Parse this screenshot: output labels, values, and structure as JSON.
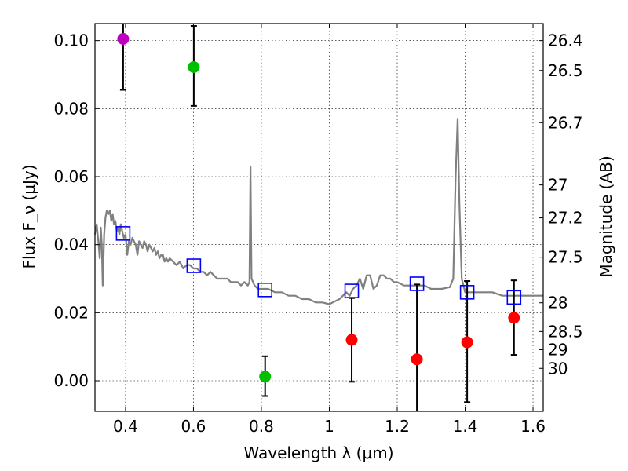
{
  "chart_data": {
    "type": "scatter",
    "xlabel": "Wavelength λ (μm)",
    "ylabel": "Flux F_ν (μJy)",
    "y2label": "Magnitude (AB)",
    "xlim": [
      0.31,
      1.63
    ],
    "ylim": [
      -0.009,
      0.105
    ],
    "x_ticks": [
      0.4,
      0.6,
      0.8,
      1.0,
      1.2,
      1.4,
      1.6
    ],
    "x_tick_labels": [
      "0.4",
      "0.6",
      "0.8",
      "1",
      "1.2",
      "1.4",
      "1.6"
    ],
    "y_ticks": [
      0.0,
      0.02,
      0.04,
      0.06,
      0.08,
      0.1
    ],
    "y_tick_labels": [
      "0.00",
      "0.02",
      "0.04",
      "0.06",
      "0.08",
      "0.10"
    ],
    "y2_ticks": [
      26.4,
      26.5,
      26.7,
      27,
      27.2,
      27.5,
      28,
      28.5,
      29,
      30
    ],
    "y2_tick_labels": [
      "26.4",
      "26.5",
      "26.7",
      "27",
      "27.2",
      "27.5",
      "28",
      "28.5",
      "29",
      "30"
    ],
    "grid": true,
    "colors": {
      "magenta": "#bf00bf",
      "green": "#00bf00",
      "red": "#ff0000",
      "model": "#808080",
      "box": "#0000ff"
    },
    "series": [
      {
        "name": "detection-magenta",
        "kind": "points-with-errors",
        "color": "magenta",
        "points": [
          {
            "x": 0.393,
            "y": 0.1005,
            "err_lo": 0.0855,
            "err_hi": 0.1055
          }
        ]
      },
      {
        "name": "detections-green",
        "kind": "points-with-errors",
        "color": "green",
        "points": [
          {
            "x": 0.601,
            "y": 0.0922,
            "err_lo": 0.0808,
            "err_hi": 0.1043
          },
          {
            "x": 0.811,
            "y": 0.0012,
            "err_lo": -0.0045,
            "err_hi": 0.0072
          }
        ]
      },
      {
        "name": "detections-red",
        "kind": "points-with-errors",
        "color": "red",
        "points": [
          {
            "x": 1.066,
            "y": 0.012,
            "err_lo": -0.0003,
            "err_hi": 0.0243
          },
          {
            "x": 1.258,
            "y": 0.0063,
            "err_lo": -0.009,
            "err_hi": 0.0283
          },
          {
            "x": 1.406,
            "y": 0.0113,
            "err_lo": -0.0063,
            "err_hi": 0.0293
          },
          {
            "x": 1.544,
            "y": 0.0185,
            "err_lo": 0.0076,
            "err_hi": 0.0295
          }
        ]
      },
      {
        "name": "model-synthetic-photometry",
        "kind": "open-squares",
        "color": "box",
        "points": [
          {
            "x": 0.393,
            "y": 0.0433
          },
          {
            "x": 0.601,
            "y": 0.0338
          },
          {
            "x": 0.811,
            "y": 0.0267
          },
          {
            "x": 1.066,
            "y": 0.0264
          },
          {
            "x": 1.258,
            "y": 0.0285
          },
          {
            "x": 1.406,
            "y": 0.026
          },
          {
            "x": 1.544,
            "y": 0.0245
          }
        ]
      },
      {
        "name": "model-spectrum",
        "kind": "line",
        "color": "model",
        "points": [
          [
            0.31,
            0.043
          ],
          [
            0.315,
            0.046
          ],
          [
            0.32,
            0.041
          ],
          [
            0.324,
            0.036
          ],
          [
            0.327,
            0.045
          ],
          [
            0.33,
            0.04
          ],
          [
            0.333,
            0.028
          ],
          [
            0.337,
            0.043
          ],
          [
            0.341,
            0.048
          ],
          [
            0.345,
            0.05
          ],
          [
            0.35,
            0.049
          ],
          [
            0.354,
            0.05
          ],
          [
            0.358,
            0.047
          ],
          [
            0.362,
            0.049
          ],
          [
            0.366,
            0.046
          ],
          [
            0.37,
            0.047
          ],
          [
            0.374,
            0.044
          ],
          [
            0.378,
            0.045
          ],
          [
            0.382,
            0.043
          ],
          [
            0.386,
            0.046
          ],
          [
            0.39,
            0.044
          ],
          [
            0.395,
            0.042
          ],
          [
            0.4,
            0.043
          ],
          [
            0.405,
            0.037
          ],
          [
            0.41,
            0.041
          ],
          [
            0.415,
            0.04
          ],
          [
            0.42,
            0.042
          ],
          [
            0.425,
            0.041
          ],
          [
            0.43,
            0.04
          ],
          [
            0.435,
            0.037
          ],
          [
            0.44,
            0.041
          ],
          [
            0.445,
            0.04
          ],
          [
            0.45,
            0.039
          ],
          [
            0.455,
            0.041
          ],
          [
            0.46,
            0.04
          ],
          [
            0.465,
            0.038
          ],
          [
            0.47,
            0.04
          ],
          [
            0.475,
            0.039
          ],
          [
            0.48,
            0.038
          ],
          [
            0.485,
            0.039
          ],
          [
            0.49,
            0.037
          ],
          [
            0.495,
            0.038
          ],
          [
            0.5,
            0.036
          ],
          [
            0.505,
            0.037
          ],
          [
            0.51,
            0.037
          ],
          [
            0.515,
            0.035
          ],
          [
            0.52,
            0.036
          ],
          [
            0.525,
            0.035
          ],
          [
            0.53,
            0.036
          ],
          [
            0.54,
            0.035
          ],
          [
            0.55,
            0.034
          ],
          [
            0.56,
            0.035
          ],
          [
            0.57,
            0.033
          ],
          [
            0.58,
            0.034
          ],
          [
            0.59,
            0.034
          ],
          [
            0.6,
            0.033
          ],
          [
            0.61,
            0.033
          ],
          [
            0.62,
            0.032
          ],
          [
            0.63,
            0.032
          ],
          [
            0.64,
            0.031
          ],
          [
            0.65,
            0.032
          ],
          [
            0.66,
            0.031
          ],
          [
            0.67,
            0.03
          ],
          [
            0.68,
            0.03
          ],
          [
            0.69,
            0.03
          ],
          [
            0.7,
            0.03
          ],
          [
            0.71,
            0.029
          ],
          [
            0.72,
            0.029
          ],
          [
            0.73,
            0.029
          ],
          [
            0.74,
            0.028
          ],
          [
            0.75,
            0.029
          ],
          [
            0.76,
            0.028
          ],
          [
            0.765,
            0.029
          ],
          [
            0.768,
            0.063
          ],
          [
            0.771,
            0.03
          ],
          [
            0.78,
            0.028
          ],
          [
            0.79,
            0.027
          ],
          [
            0.8,
            0.027
          ],
          [
            0.82,
            0.027
          ],
          [
            0.84,
            0.026
          ],
          [
            0.86,
            0.026
          ],
          [
            0.88,
            0.025
          ],
          [
            0.9,
            0.025
          ],
          [
            0.92,
            0.024
          ],
          [
            0.94,
            0.024
          ],
          [
            0.96,
            0.023
          ],
          [
            0.98,
            0.023
          ],
          [
            1.0,
            0.0225
          ],
          [
            1.01,
            0.023
          ],
          [
            1.03,
            0.024
          ],
          [
            1.05,
            0.026
          ],
          [
            1.06,
            0.025
          ],
          [
            1.07,
            0.027
          ],
          [
            1.08,
            0.028
          ],
          [
            1.09,
            0.03
          ],
          [
            1.1,
            0.027
          ],
          [
            1.11,
            0.031
          ],
          [
            1.12,
            0.031
          ],
          [
            1.13,
            0.027
          ],
          [
            1.14,
            0.028
          ],
          [
            1.15,
            0.031
          ],
          [
            1.16,
            0.031
          ],
          [
            1.17,
            0.03
          ],
          [
            1.18,
            0.03
          ],
          [
            1.19,
            0.029
          ],
          [
            1.2,
            0.029
          ],
          [
            1.22,
            0.028
          ],
          [
            1.24,
            0.028
          ],
          [
            1.26,
            0.028
          ],
          [
            1.28,
            0.028
          ],
          [
            1.3,
            0.027
          ],
          [
            1.33,
            0.027
          ],
          [
            1.355,
            0.0275
          ],
          [
            1.365,
            0.03
          ],
          [
            1.372,
            0.06
          ],
          [
            1.378,
            0.077
          ],
          [
            1.383,
            0.052
          ],
          [
            1.39,
            0.03
          ],
          [
            1.4,
            0.026
          ],
          [
            1.42,
            0.026
          ],
          [
            1.45,
            0.026
          ],
          [
            1.48,
            0.026
          ],
          [
            1.51,
            0.025
          ],
          [
            1.54,
            0.025
          ],
          [
            1.57,
            0.025
          ],
          [
            1.6,
            0.025
          ],
          [
            1.63,
            0.025
          ]
        ]
      }
    ]
  }
}
